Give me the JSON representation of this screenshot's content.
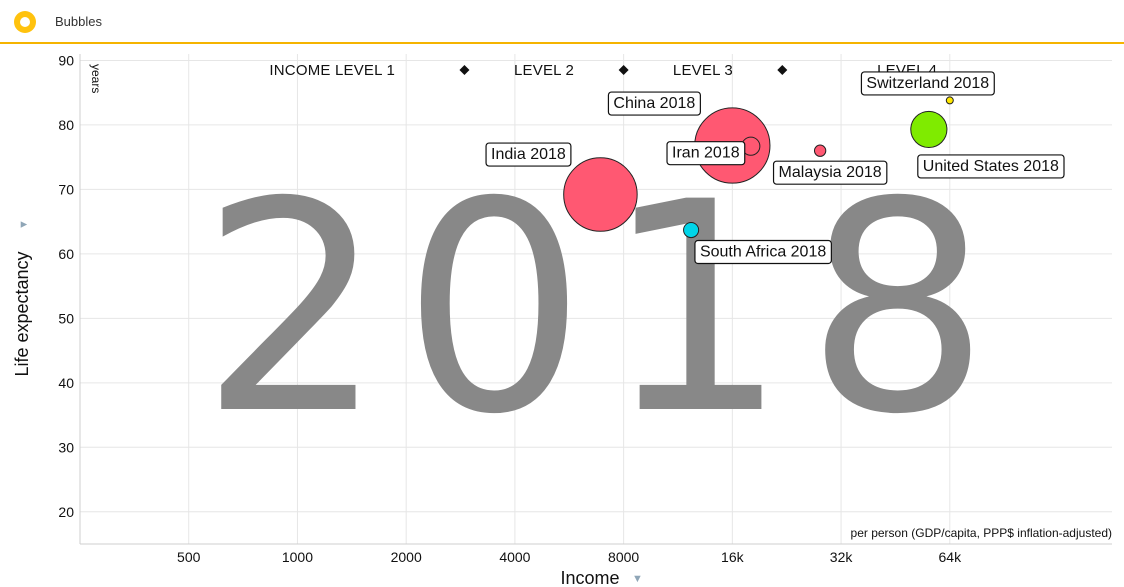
{
  "app": {
    "title": "Bubbles"
  },
  "chart_data": {
    "type": "scatter",
    "year_watermark": "2018",
    "xscale": "log",
    "xlim": [
      250,
      180000
    ],
    "ylim": [
      15,
      91
    ],
    "x_ticks": [
      {
        "value": 500,
        "label": "500"
      },
      {
        "value": 1000,
        "label": "1000"
      },
      {
        "value": 2000,
        "label": "2000"
      },
      {
        "value": 4000,
        "label": "4000"
      },
      {
        "value": 8000,
        "label": "8000"
      },
      {
        "value": 16000,
        "label": "16k"
      },
      {
        "value": 32000,
        "label": "32k"
      },
      {
        "value": 64000,
        "label": "64k"
      }
    ],
    "y_ticks": [
      20,
      30,
      40,
      50,
      60,
      70,
      80,
      90
    ],
    "xlabel": "Income",
    "xlabel_note": "per person (GDP/capita, PPP$ inflation-adjusted)",
    "ylabel": "Life expectancy",
    "ylabel_unit": "years",
    "grid": true,
    "income_levels": {
      "labels": [
        "INCOME LEVEL 1",
        "LEVEL 2",
        "LEVEL 3",
        "LEVEL 4"
      ],
      "boundaries": [
        2900,
        8000,
        22000
      ]
    },
    "points": [
      {
        "name": "India 2018",
        "x": 6900,
        "y": 69.2,
        "size": 1350,
        "color": "#ff5872"
      },
      {
        "name": "China 2018",
        "x": 16000,
        "y": 76.8,
        "size": 1415,
        "color": "#ff5872"
      },
      {
        "name": "Iran 2018",
        "x": 18000,
        "y": 76.7,
        "size": 82,
        "color": "#ff5872"
      },
      {
        "name": "Malaysia 2018",
        "x": 28000,
        "y": 76.0,
        "size": 32,
        "color": "#ff5872"
      },
      {
        "name": "South Africa 2018",
        "x": 12300,
        "y": 63.7,
        "size": 57,
        "color": "#00d5e9"
      },
      {
        "name": "United States 2018",
        "x": 56000,
        "y": 79.3,
        "size": 327,
        "color": "#7feb00"
      },
      {
        "name": "Switzerland 2018",
        "x": 64000,
        "y": 83.8,
        "size": 8.5,
        "color": "#ffe700"
      }
    ]
  }
}
